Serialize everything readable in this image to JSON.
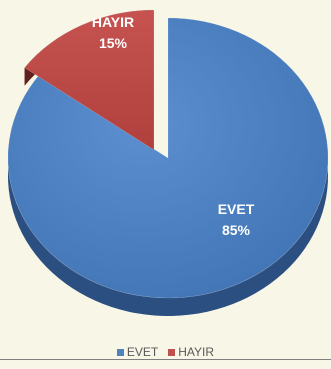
{
  "chart_data": {
    "type": "pie",
    "style": "3d-exploded",
    "categories": [
      "EVET",
      "HAYIR"
    ],
    "values": [
      85,
      15
    ],
    "labels": [
      {
        "name": "EVET",
        "percent": "85%"
      },
      {
        "name": "HAYIR",
        "percent": "15%"
      }
    ],
    "colors": [
      "#4f81bd",
      "#c0504d"
    ],
    "side_colors": [
      "#2b4f80",
      "#5e1f1d"
    ],
    "legend_placement": "bottom",
    "background": "#f8f6e6"
  },
  "legend": {
    "items": [
      {
        "label": "EVET",
        "color": "#4f81bd"
      },
      {
        "label": "HAYIR",
        "color": "#c0504d"
      }
    ]
  }
}
